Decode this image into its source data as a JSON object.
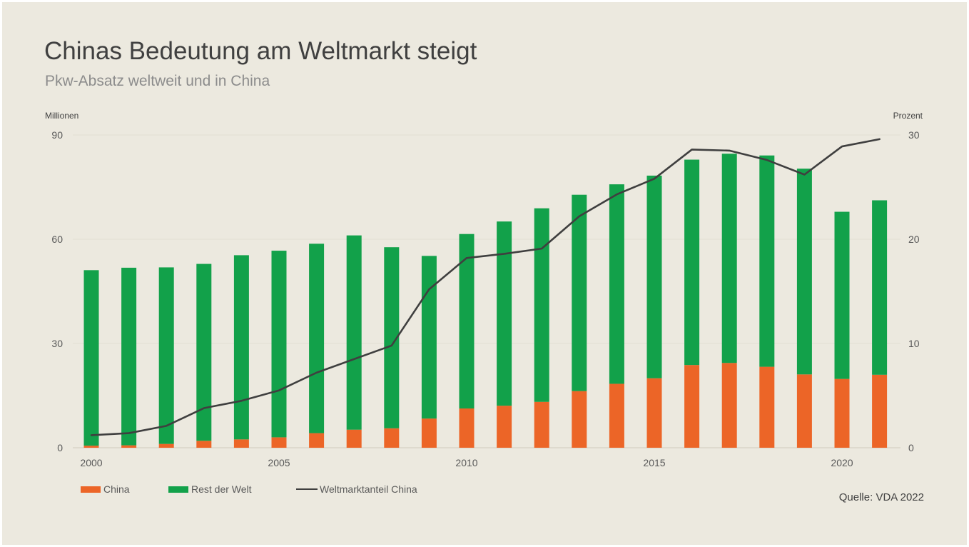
{
  "title": "Chinas Bedeutung am Weltmarkt steigt",
  "subtitle": "Pkw-Absatz weltweit und in China",
  "source": "Quelle: VDA 2022",
  "colors": {
    "china": "#ec6527",
    "rest": "#12a14a",
    "share_line": "#3f3f3f",
    "background": "#ece9df"
  },
  "chart_data": {
    "type": "bar",
    "stacked": true,
    "left_axis_label": "Millionen",
    "right_axis_label": "Prozent",
    "ylim": [
      0,
      90
    ],
    "y2lim": [
      0,
      30
    ],
    "yticks": [
      "0",
      "30",
      "60",
      "90"
    ],
    "y2ticks": [
      "0",
      "10",
      "20",
      "30"
    ],
    "grid": true,
    "legend_position": "bottom-left",
    "x": [
      2000,
      2001,
      2002,
      2003,
      2004,
      2005,
      2006,
      2007,
      2008,
      2009,
      2010,
      2011,
      2012,
      2013,
      2014,
      2015,
      2016,
      2017,
      2018,
      2019,
      2020,
      2021
    ],
    "xtick_labels": [
      "2000",
      "2005",
      "2010",
      "2015",
      "2020"
    ],
    "series": [
      {
        "name": "China",
        "axis": "left",
        "values": [
          0.6,
          0.7,
          1.1,
          2.0,
          2.4,
          3.0,
          4.2,
          5.2,
          5.6,
          8.4,
          11.3,
          12.1,
          13.2,
          16.3,
          18.4,
          20.0,
          23.8,
          24.4,
          23.3,
          21.1,
          19.8,
          21.0
        ]
      },
      {
        "name": "Rest der Welt",
        "axis": "left",
        "values": [
          50.5,
          51.1,
          50.8,
          50.9,
          53.0,
          53.7,
          54.5,
          55.9,
          52.1,
          46.8,
          50.2,
          53.0,
          55.7,
          56.5,
          57.4,
          58.3,
          59.1,
          60.2,
          60.8,
          59.2,
          48.1,
          50.2
        ]
      },
      {
        "name": "Weltmarktanteil China",
        "axis": "right",
        "type": "line",
        "values": [
          1.2,
          1.4,
          2.1,
          3.8,
          4.5,
          5.5,
          7.2,
          8.5,
          9.8,
          15.2,
          18.2,
          18.6,
          19.1,
          22.2,
          24.3,
          25.8,
          28.6,
          28.5,
          27.6,
          26.2,
          28.9,
          29.6
        ]
      }
    ]
  }
}
